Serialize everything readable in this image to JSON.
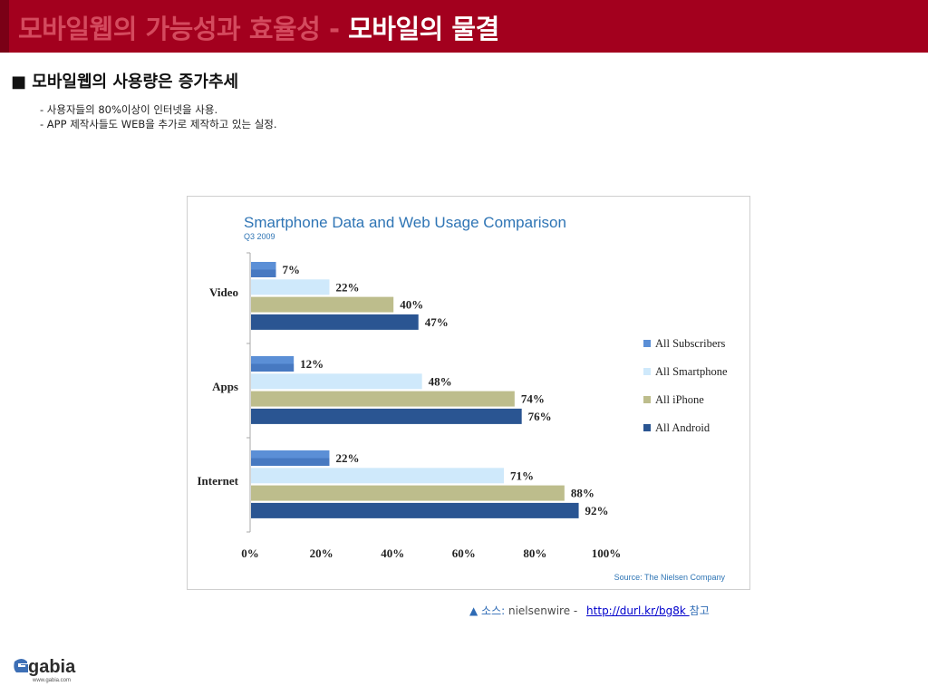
{
  "slide": {
    "title_part1": "모바일웹의 가능성과 효율성 - ",
    "title_part2": "모바일의 물결",
    "section_heading": "■ 모바일웹의 사용량은 증가추세",
    "bullets": [
      "- 사용자들의 80%이상이 인터넷을 사용.",
      "- APP 제작사들도 WEB을 추가로 제작하고 있는 실정."
    ],
    "source_prefix": "▲ 소스:",
    "source_name": " nielsenwire - ",
    "source_link": "http://durl.kr/bg8k ",
    "source_suffix": "참고",
    "logo_text": "gabia",
    "logo_url": "www.gabia.com",
    "colors": {
      "header": "#a3001e",
      "title_muted": "#d44a5e",
      "title_highlight": "#ffffff"
    }
  },
  "chart_data": {
    "type": "bar",
    "orientation": "horizontal",
    "title": "Smartphone Data and Web Usage Comparison",
    "subtitle": "Q3 2009",
    "categories": [
      "Video",
      "Apps",
      "Internet"
    ],
    "series": [
      {
        "name": "All Subscribers",
        "values": [
          7,
          12,
          22
        ],
        "color": "#5b8fd6"
      },
      {
        "name": "All Smartphone",
        "values": [
          22,
          48,
          71
        ],
        "color": "#cfe9fb"
      },
      {
        "name": "All iPhone",
        "values": [
          40,
          74,
          88
        ],
        "color": "#bdbd8c"
      },
      {
        "name": "All Android",
        "values": [
          47,
          76,
          92
        ],
        "color": "#2a5592"
      }
    ],
    "xlim": [
      0,
      100
    ],
    "xticks": [
      "0%",
      "20%",
      "40%",
      "60%",
      "80%",
      "100%"
    ],
    "value_suffix": "%",
    "legend_position": "right",
    "source_note": "Source: The Nielsen Company"
  }
}
